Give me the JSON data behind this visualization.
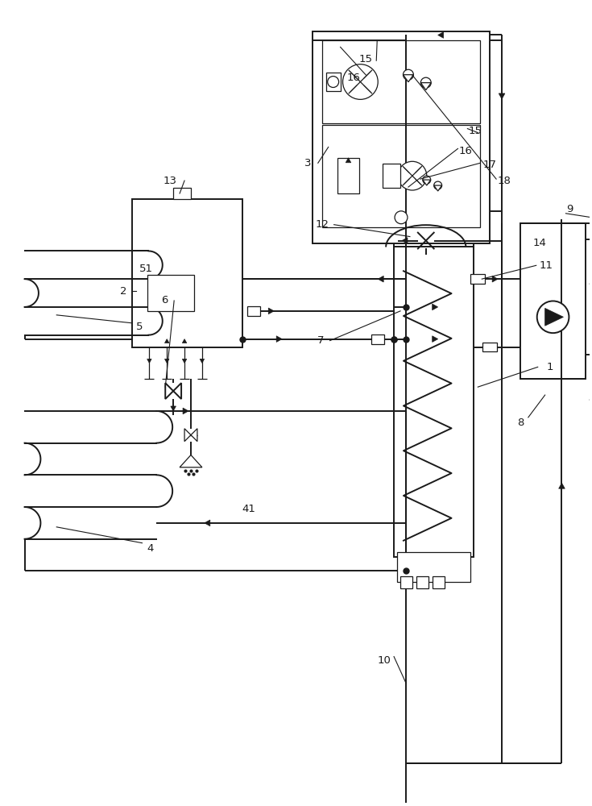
{
  "bg_color": "#ffffff",
  "line_color": "#1a1a1a",
  "lw_main": 1.4,
  "lw_thin": 0.9,
  "fig_width": 7.35,
  "fig_height": 10.0,
  "dpi": 100
}
